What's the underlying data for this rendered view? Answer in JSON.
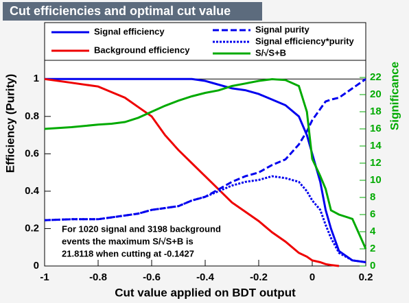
{
  "chart_data": {
    "type": "line",
    "title": "Cut efficiencies and optimal cut value",
    "x_label": "Cut value applied on BDT output",
    "y_label": "Efficiency (Purity)",
    "y2_label": "Significance",
    "annotation": [
      "For 1020 signal and 3198 background",
      "events the maximum S/√S+B is",
      "21.8118 when cutting at -0.1427"
    ],
    "x": [
      -1,
      -0.9,
      -0.8,
      -0.75,
      -0.7,
      -0.65,
      -0.6,
      -0.55,
      -0.5,
      -0.45,
      -0.4,
      -0.35,
      -0.3,
      -0.25,
      -0.2,
      -0.15,
      -0.1,
      -0.05,
      -0.02,
      0,
      0.03,
      0.05,
      0.07,
      0.1,
      0.15,
      0.2
    ],
    "series": [
      {
        "name": "Signal efficiency",
        "color": "#0000ee",
        "linestyle": "solid",
        "values": [
          1,
          1,
          1,
          1,
          1,
          1,
          1,
          1,
          1,
          1,
          0.99,
          0.97,
          0.95,
          0.94,
          0.92,
          0.89,
          0.86,
          0.8,
          0.7,
          0.6,
          0.45,
          0.3,
          0.2,
          0.08,
          0.03,
          0.02
        ]
      },
      {
        "name": "Background efficiency",
        "color": "#ee0000",
        "linestyle": "solid",
        "values": [
          1,
          0.98,
          0.96,
          0.93,
          0.9,
          0.85,
          0.8,
          0.7,
          0.62,
          0.55,
          0.48,
          0.41,
          0.34,
          0.29,
          0.24,
          0.18,
          0.13,
          0.07,
          0.05,
          0.03,
          0.02,
          0.01,
          0.005,
          0,
          null,
          null
        ]
      },
      {
        "name": "Signal purity",
        "color": "#0000ee",
        "linestyle": "dashed",
        "values": [
          0.245,
          0.25,
          0.25,
          0.26,
          0.27,
          0.28,
          0.3,
          0.31,
          0.32,
          0.35,
          0.37,
          0.41,
          0.45,
          0.48,
          0.5,
          0.54,
          0.57,
          0.65,
          0.72,
          0.78,
          0.84,
          0.88,
          0.89,
          0.9,
          0.95,
          1
        ]
      },
      {
        "name": "Signal efficiency*purity",
        "color": "#0000ee",
        "linestyle": "dotted",
        "values": [
          0.245,
          0.25,
          0.25,
          0.26,
          0.27,
          0.28,
          0.3,
          0.31,
          0.32,
          0.35,
          0.37,
          0.4,
          0.43,
          0.45,
          0.46,
          0.48,
          0.47,
          0.45,
          0.4,
          0.35,
          0.3,
          0.22,
          0.15,
          0.07,
          0.03,
          0.02
        ]
      },
      {
        "name": "S/√S+B",
        "color": "#00aa00",
        "linestyle": "solid",
        "axis": "y2",
        "values": [
          16,
          16.2,
          16.5,
          16.6,
          16.8,
          17.3,
          18,
          18.7,
          19.3,
          19.8,
          20.2,
          20.5,
          21,
          21.3,
          21.6,
          21.8,
          21.7,
          21,
          18,
          12.5,
          10.5,
          9,
          6.5,
          6,
          5.5,
          2
        ]
      }
    ],
    "xlim": [
      -1,
      0.2
    ],
    "xticks": [
      -1,
      -0.8,
      -0.6,
      -0.4,
      -0.2,
      0,
      0.2
    ],
    "ylim": [
      0,
      1.1
    ],
    "yticks": [
      0,
      0.2,
      0.4,
      0.6,
      0.8,
      1
    ],
    "y2lim": [
      0,
      24
    ],
    "y2ticks": [
      0,
      2,
      4,
      6,
      8,
      10,
      12,
      14,
      16,
      18,
      20,
      22
    ],
    "reference_line": 1
  }
}
